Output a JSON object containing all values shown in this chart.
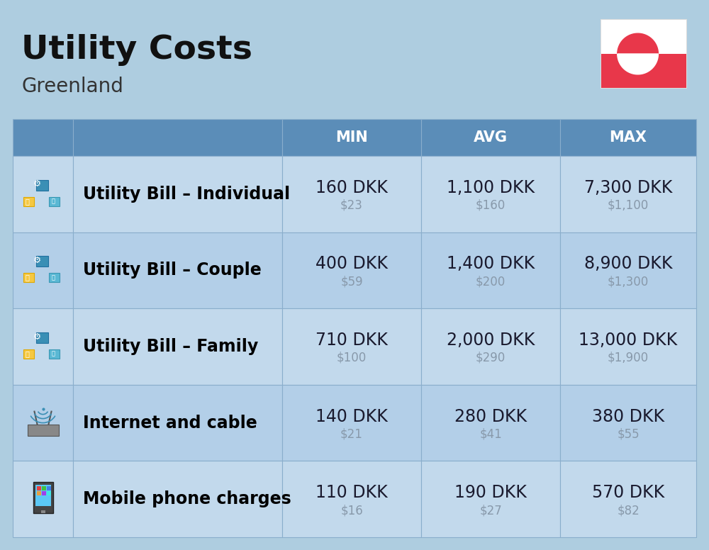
{
  "title": "Utility Costs",
  "subtitle": "Greenland",
  "background_color": "#aecde0",
  "header_bg_color": "#5b8db8",
  "header_text_color": "#ffffff",
  "row_bg_color_1": "#c2d9ec",
  "row_bg_color_2": "#b3cfe8",
  "divider_color": "#8aaecc",
  "columns": [
    "MIN",
    "AVG",
    "MAX"
  ],
  "rows": [
    {
      "label": "Utility Bill – Individual",
      "icon": "utility",
      "min_dkk": "160 DKK",
      "min_usd": "$23",
      "avg_dkk": "1,100 DKK",
      "avg_usd": "$160",
      "max_dkk": "7,300 DKK",
      "max_usd": "$1,100"
    },
    {
      "label": "Utility Bill – Couple",
      "icon": "utility",
      "min_dkk": "400 DKK",
      "min_usd": "$59",
      "avg_dkk": "1,400 DKK",
      "avg_usd": "$200",
      "max_dkk": "8,900 DKK",
      "max_usd": "$1,300"
    },
    {
      "label": "Utility Bill – Family",
      "icon": "utility",
      "min_dkk": "710 DKK",
      "min_usd": "$100",
      "avg_dkk": "2,000 DKK",
      "avg_usd": "$290",
      "max_dkk": "13,000 DKK",
      "max_usd": "$1,900"
    },
    {
      "label": "Internet and cable",
      "icon": "internet",
      "min_dkk": "140 DKK",
      "min_usd": "$21",
      "avg_dkk": "280 DKK",
      "avg_usd": "$41",
      "max_dkk": "380 DKK",
      "max_usd": "$55"
    },
    {
      "label": "Mobile phone charges",
      "icon": "mobile",
      "min_dkk": "110 DKK",
      "min_usd": "$16",
      "avg_dkk": "190 DKK",
      "avg_usd": "$27",
      "max_dkk": "570 DKK",
      "max_usd": "$82"
    }
  ],
  "title_fontsize": 34,
  "subtitle_fontsize": 20,
  "header_fontsize": 15,
  "cell_dkk_fontsize": 17,
  "cell_usd_fontsize": 12,
  "label_fontsize": 17,
  "dkk_color": "#1a1a2e",
  "usd_color": "#8899aa",
  "label_color": "#000000",
  "flag_red": "#e8374a",
  "flag_white": "#ffffff"
}
